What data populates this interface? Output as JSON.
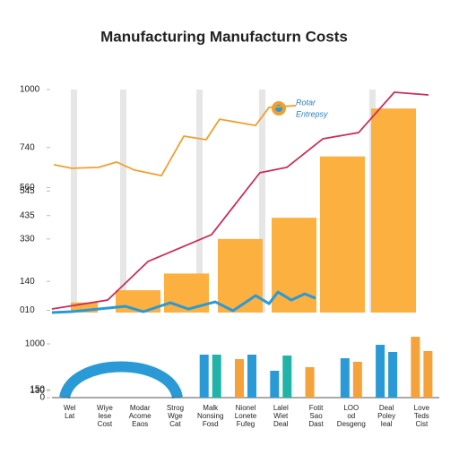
{
  "title": "Manufacturing Manufacturn Costs",
  "chart_data": [
    {
      "type": "combo",
      "xlim": [
        0,
        14
      ],
      "ylim": [
        0,
        1000
      ],
      "yticks": [
        1000,
        740,
        560,
        545,
        330,
        435,
        140,
        {
          "value": 10,
          "label": "010"
        }
      ],
      "bars": {
        "color": "#fbb040",
        "x": [
          1.2,
          3.2,
          5,
          7,
          9,
          10.8,
          12.7
        ],
        "values": [
          45,
          100,
          175,
          330,
          425,
          700,
          915
        ]
      },
      "series": [
        {
          "name": "Rotar",
          "color": "#f0a030",
          "x": [
            0.07,
            0.73,
            1.73,
            2.4,
            3.07,
            4.07,
            4.9,
            5.73,
            6.23,
            7.57,
            8.07,
            9.07
          ],
          "values": [
            663,
            647,
            651,
            675,
            639,
            614,
            791,
            775,
            867,
            839,
            920,
            928
          ]
        },
        {
          "name": "Entrepsy",
          "color": "#2a9ad6",
          "x": [
            0,
            0.73,
            1.4,
            2.73,
            3.4,
            4.4,
            5.07,
            6.07,
            6.73,
            7.57,
            8.07,
            8.4,
            8.9,
            9.4,
            9.8
          ],
          "values": [
            0,
            4,
            12,
            28,
            4,
            44,
            16,
            48,
            8,
            76,
            40,
            92,
            56,
            84,
            64
          ]
        },
        {
          "color": "#c8305a",
          "x": [
            0,
            2.07,
            3.57,
            5.93,
            7.73,
            8.73,
            10.07,
            11.4,
            12.73,
            14
          ],
          "values": [
            16,
            56,
            229,
            349,
            627,
            651,
            779,
            807,
            988,
            976
          ]
        }
      ]
    },
    {
      "type": "bar",
      "ylim": [
        0,
        1200
      ],
      "yticks": [
        1000,
        150,
        130,
        0
      ],
      "categories": [
        "Wel Lat",
        "Wiye lese Cost",
        "Modar Acome Eaos",
        "Strog Wge Cat",
        "Malk Nonsing Fosd",
        "Nionel Lonete Fufeg",
        "Lalel Wiet Deal",
        "Fotit Sao Dast",
        "LOO od Desgeng",
        "Deal Poley Ieal",
        "Love Teds Cist"
      ],
      "series": [
        {
          "values": [
            null,
            null,
            null,
            null,
            800,
            717,
            500,
            567,
            733,
            983,
            1133
          ],
          "colors": [
            null,
            null,
            null,
            null,
            "#2a9ad6",
            "#f5a23a",
            "#2a9ad6",
            "#f5a23a",
            "#2a9ad6",
            "#2a9ad6",
            "#f5a23a"
          ]
        },
        {
          "values": [
            null,
            null,
            null,
            null,
            800,
            800,
            783,
            null,
            667,
            850,
            867
          ],
          "colors": [
            null,
            null,
            null,
            null,
            "#22b3a8",
            "#2a9ad6",
            "#22b3a8",
            null,
            "#f5a23a",
            "#2a9ad6",
            "#f5a23a"
          ]
        }
      ]
    }
  ]
}
